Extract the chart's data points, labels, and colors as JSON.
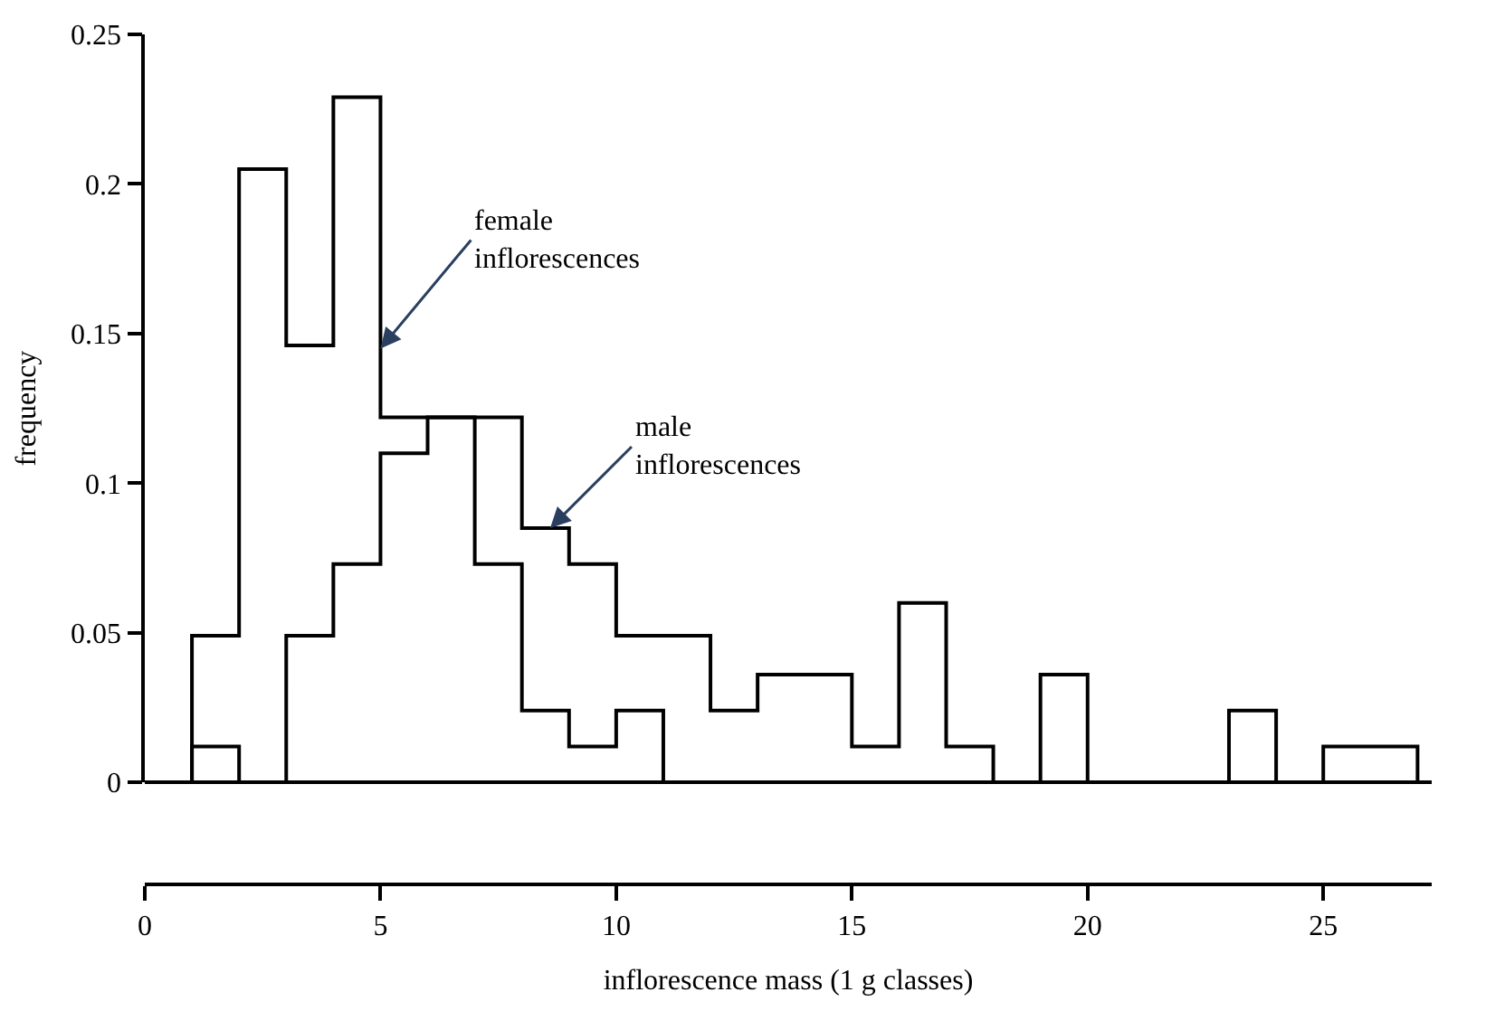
{
  "chart_data": {
    "type": "histogram",
    "xlabel": "inflorescence mass (1 g classes)",
    "ylabel": "frequency",
    "bins": [
      1,
      2,
      3,
      4,
      5,
      6,
      7,
      8,
      9,
      10,
      11,
      12,
      13,
      14,
      15,
      16,
      17,
      18,
      19,
      20,
      21,
      22,
      23,
      24,
      25,
      26,
      27
    ],
    "series": [
      {
        "color": "#000000",
        "values": [
          0.049,
          0.205,
          0.146,
          0.229,
          0.122,
          0.122,
          0.073,
          0.024,
          0.012,
          0.024,
          0,
          0,
          0,
          0,
          0,
          0,
          0,
          0,
          0,
          0,
          0,
          0,
          0,
          0,
          0,
          0
        ]
      },
      {
        "color": "#000000",
        "values": [
          0.012,
          0,
          0.049,
          0.073,
          0.11,
          0.122,
          0.122,
          0.085,
          0.073,
          0.049,
          0.049,
          0.024,
          0.036,
          0.036,
          0.012,
          0.06,
          0.012,
          0,
          0.036,
          0,
          0,
          0,
          0.024,
          0,
          0.012,
          0.012
        ]
      }
    ],
    "annotations": [
      {
        "text": "female\ninflorescences",
        "x": 5,
        "y": 0.145
      },
      {
        "text": "male\ninflorescences",
        "x": 8.6,
        "y": 0.085
      }
    ],
    "xlim": [
      0,
      27.3
    ],
    "xticks": [
      0,
      5,
      10,
      15,
      20,
      25
    ],
    "ylim": [
      0,
      0.25
    ],
    "yticks": [
      0,
      0.05,
      0.1,
      0.15,
      0.2,
      0.25
    ]
  }
}
